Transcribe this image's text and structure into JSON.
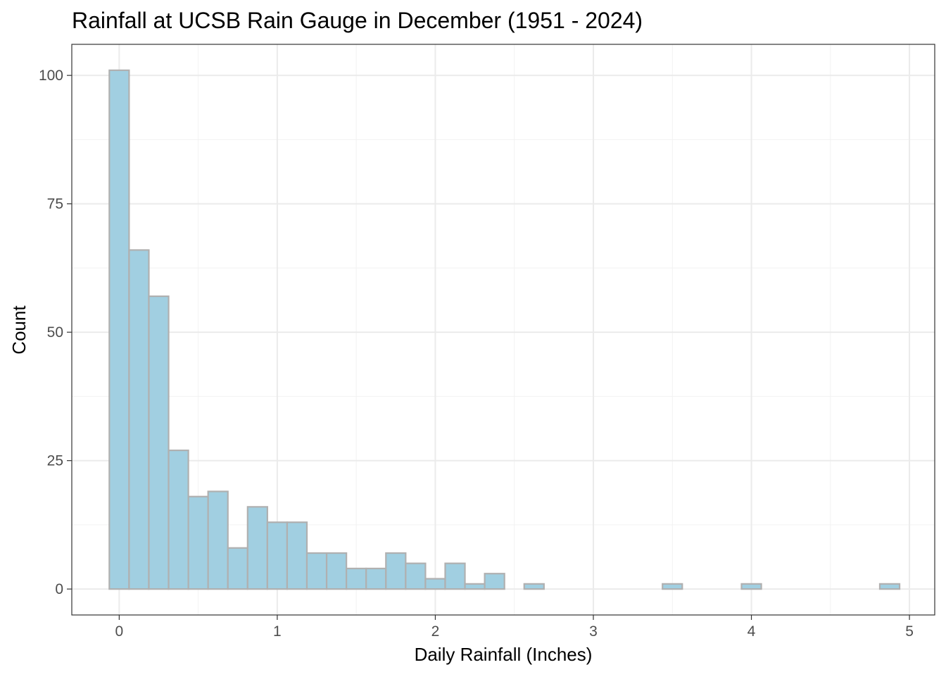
{
  "chart_data": {
    "type": "bar",
    "title": "Rainfall at UCSB Rain Gauge in December (1951 - 2024)",
    "xlabel": "Daily Rainfall (Inches)",
    "ylabel": "Count",
    "xlim": [
      -0.3,
      5.16
    ],
    "ylim": [
      -5.05,
      106.05
    ],
    "xticks": [
      0,
      1,
      2,
      3,
      4,
      5
    ],
    "xtick_labels": [
      "0",
      "1",
      "2",
      "3",
      "4",
      "5"
    ],
    "yticks": [
      0,
      25,
      50,
      75,
      100
    ],
    "ytick_labels": [
      "0",
      "25",
      "50",
      "75",
      "100"
    ],
    "grid": true,
    "bin_width": 0.125,
    "bin_start": -0.0625,
    "values": [
      101,
      66,
      57,
      27,
      18,
      19,
      8,
      16,
      13,
      13,
      7,
      7,
      4,
      4,
      7,
      5,
      2,
      5,
      1,
      3,
      0,
      1,
      0,
      0,
      0,
      0,
      0,
      0,
      1,
      0,
      0,
      0,
      1,
      0,
      0,
      0,
      0,
      0,
      0,
      1
    ],
    "colors": {
      "bar_fill": "#a1cfe1",
      "bar_outline": "#b0b0b0",
      "background": "#ffffff"
    }
  }
}
